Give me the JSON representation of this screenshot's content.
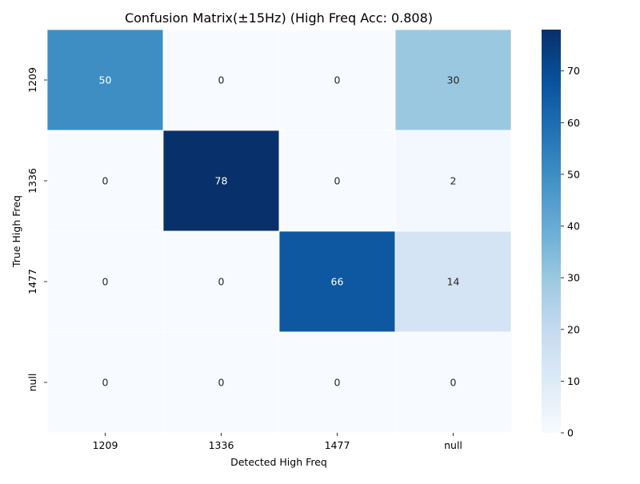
{
  "chart_data": {
    "type": "heatmap",
    "title": "Confusion Matrix(±15Hz) (High Freq Acc: 0.808)",
    "xlabel": "Detected High Freq",
    "ylabel": "True High Freq",
    "x_categories": [
      "1209",
      "1336",
      "1477",
      "null"
    ],
    "y_categories": [
      "1209",
      "1336",
      "1477",
      "null"
    ],
    "values": [
      [
        50,
        0,
        0,
        30
      ],
      [
        0,
        78,
        0,
        2
      ],
      [
        0,
        0,
        66,
        14
      ],
      [
        0,
        0,
        0,
        0
      ]
    ],
    "colormap": "Blues",
    "colorbar": {
      "range": [
        0,
        78
      ],
      "ticks": [
        "0",
        "10",
        "20",
        "30",
        "40",
        "50",
        "60",
        "70"
      ]
    },
    "annotation_colors": {
      "dark_cells": "#ffffff",
      "light_cells": "#262626"
    },
    "grid_line_color": "#ffffff"
  }
}
